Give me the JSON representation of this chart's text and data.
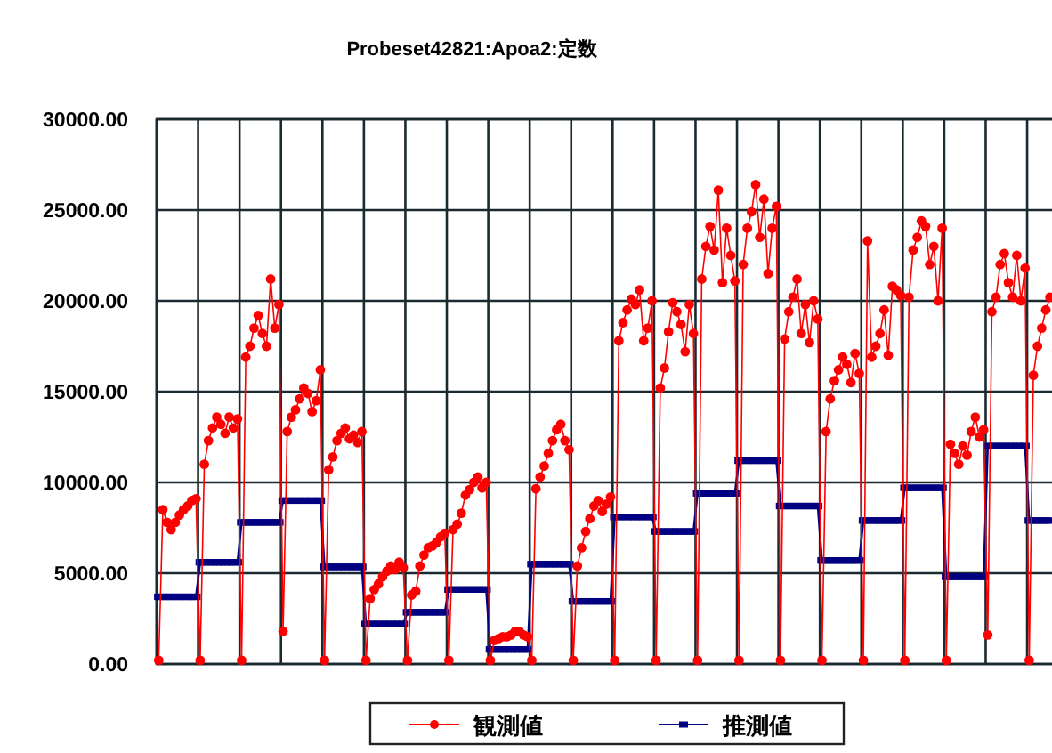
{
  "chart_data": {
    "type": "line",
    "title": "Probeset42821:Apoa2:定数",
    "categories": [
      null,
      null,
      null,
      null,
      null,
      null,
      null,
      null,
      null,
      null,
      null,
      null,
      null,
      null,
      null,
      null,
      null,
      null,
      null,
      null,
      null,
      null,
      null,
      null,
      null,
      null,
      null,
      null,
      null,
      null,
      null,
      null,
      null,
      null,
      null,
      null,
      null,
      null,
      null,
      null,
      null,
      null,
      null,
      null,
      null,
      null,
      null,
      null,
      null,
      null,
      null,
      null,
      null,
      null,
      null,
      null,
      null,
      null,
      null,
      null,
      null,
      null,
      null,
      null,
      null,
      null,
      null,
      null,
      null,
      null,
      null,
      null,
      null,
      null,
      null,
      null,
      null,
      null,
      null,
      null,
      null,
      null,
      null,
      null,
      null,
      null,
      null,
      null,
      null,
      null,
      null,
      null,
      null,
      null,
      null,
      null,
      null,
      null,
      null,
      null,
      null,
      null,
      null,
      null,
      null,
      null,
      null,
      null,
      null,
      null,
      null,
      null,
      null,
      null,
      null,
      null,
      null,
      null,
      null,
      null,
      null,
      null,
      null,
      null,
      null,
      null,
      null,
      null,
      null,
      null,
      null,
      null,
      null,
      null,
      null,
      null,
      null,
      null,
      null,
      null,
      null,
      null,
      null,
      null,
      null,
      null,
      null,
      null,
      null,
      null,
      null,
      null,
      null,
      null,
      null,
      null,
      null,
      null,
      null,
      null,
      null,
      null,
      null,
      null,
      null,
      null,
      null,
      null,
      null,
      null,
      null,
      null,
      null,
      null,
      null,
      null,
      null,
      null,
      null,
      null,
      null,
      null,
      null,
      null,
      null,
      null,
      null,
      null,
      null,
      null,
      null,
      null,
      null,
      null,
      null,
      null,
      null,
      null,
      null,
      null,
      null,
      null,
      null,
      null,
      null,
      null,
      null,
      null,
      null,
      null,
      null,
      null,
      null,
      null,
      null,
      null
    ],
    "series": [
      {
        "name": "観測値",
        "color": "#ff0000",
        "marker": "circle",
        "values": [
          200,
          8500,
          7800,
          7400,
          7800,
          8200,
          8500,
          8700,
          9000,
          9100,
          200,
          11000,
          12300,
          13000,
          13600,
          13200,
          12700,
          13600,
          13000,
          13500,
          200,
          16900,
          17500,
          18500,
          19200,
          18200,
          17500,
          21200,
          18500,
          19800,
          1800,
          12800,
          13600,
          14000,
          14600,
          15200,
          14900,
          13900,
          14500,
          16200,
          200,
          10700,
          11400,
          12300,
          12700,
          13000,
          12400,
          12600,
          12200,
          12800,
          200,
          3600,
          4100,
          4400,
          4800,
          5100,
          5400,
          5200,
          5600,
          5300,
          200,
          3800,
          4000,
          5400,
          6000,
          6400,
          6500,
          6700,
          7000,
          7200,
          200,
          7400,
          7700,
          8300,
          9300,
          9600,
          10000,
          10300,
          9700,
          10000,
          200,
          1300,
          1400,
          1500,
          1500,
          1600,
          1800,
          1800,
          1600,
          1500,
          200,
          9650,
          10300,
          10900,
          11600,
          12300,
          12900,
          13200,
          12300,
          11800,
          200,
          5400,
          6400,
          7300,
          8000,
          8700,
          9000,
          8400,
          8800,
          9200,
          200,
          17800,
          18800,
          19500,
          20100,
          19800,
          20600,
          17800,
          18500,
          20000,
          200,
          15200,
          16300,
          18300,
          19900,
          19400,
          18700,
          17200,
          19800,
          18200,
          200,
          21200,
          23000,
          24100,
          22800,
          26100,
          21000,
          24000,
          22500,
          21100,
          200,
          22000,
          24000,
          24900,
          26400,
          23500,
          25600,
          21500,
          24000,
          25200,
          200,
          17900,
          19400,
          20200,
          21200,
          18200,
          19800,
          17700,
          20000,
          19000,
          200,
          12800,
          14600,
          15600,
          16200,
          16900,
          16500,
          15500,
          17100,
          16000,
          200,
          23300,
          16900,
          17500,
          18200,
          19500,
          17000,
          20800,
          20600,
          20300,
          200,
          20200,
          22800,
          23500,
          24400,
          24100,
          22000,
          23000,
          20000,
          24000,
          200,
          12100,
          11600,
          11000,
          12000,
          11500,
          12800,
          13600,
          12500,
          12900,
          1600,
          19400,
          20200,
          22000,
          22600,
          21000,
          20200,
          22500,
          20000,
          21800,
          200,
          15900,
          17500,
          18500,
          19500,
          20200
        ]
      },
      {
        "name": "推測値",
        "color": "#000080",
        "marker": "square",
        "values": [
          3700,
          3700,
          3700,
          3700,
          3700,
          3700,
          3700,
          3700,
          3700,
          3700,
          5600,
          5600,
          5600,
          5600,
          5600,
          5600,
          5600,
          5600,
          5600,
          5600,
          7800,
          7800,
          7800,
          7800,
          7800,
          7800,
          7800,
          7800,
          7800,
          7800,
          9000,
          9000,
          9000,
          9000,
          9000,
          9000,
          9000,
          9000,
          9000,
          9000,
          5350,
          5350,
          5350,
          5350,
          5350,
          5350,
          5350,
          5350,
          5350,
          5350,
          2200,
          2200,
          2200,
          2200,
          2200,
          2200,
          2200,
          2200,
          2200,
          2200,
          2850,
          2850,
          2850,
          2850,
          2850,
          2850,
          2850,
          2850,
          2850,
          2850,
          4100,
          4100,
          4100,
          4100,
          4100,
          4100,
          4100,
          4100,
          4100,
          4100,
          800,
          800,
          800,
          800,
          800,
          800,
          800,
          800,
          800,
          800,
          5500,
          5500,
          5500,
          5500,
          5500,
          5500,
          5500,
          5500,
          5500,
          5500,
          3450,
          3450,
          3450,
          3450,
          3450,
          3450,
          3450,
          3450,
          3450,
          3450,
          8100,
          8100,
          8100,
          8100,
          8100,
          8100,
          8100,
          8100,
          8100,
          8100,
          7300,
          7300,
          7300,
          7300,
          7300,
          7300,
          7300,
          7300,
          7300,
          7300,
          9400,
          9400,
          9400,
          9400,
          9400,
          9400,
          9400,
          9400,
          9400,
          9400,
          11200,
          11200,
          11200,
          11200,
          11200,
          11200,
          11200,
          11200,
          11200,
          11200,
          8700,
          8700,
          8700,
          8700,
          8700,
          8700,
          8700,
          8700,
          8700,
          8700,
          5700,
          5700,
          5700,
          5700,
          5700,
          5700,
          5700,
          5700,
          5700,
          5700,
          7900,
          7900,
          7900,
          7900,
          7900,
          7900,
          7900,
          7900,
          7900,
          7900,
          9700,
          9700,
          9700,
          9700,
          9700,
          9700,
          9700,
          9700,
          9700,
          9700,
          4800,
          4800,
          4800,
          4800,
          4800,
          4800,
          4800,
          4800,
          4800,
          4800,
          12000,
          12000,
          12000,
          12000,
          12000,
          12000,
          12000,
          12000,
          12000,
          12000,
          7900,
          7900,
          7900,
          7900,
          7900,
          7900
        ]
      }
    ],
    "ylim": [
      0,
      30000
    ],
    "yticks": [
      {
        "value": 0,
        "label": "0.00"
      },
      {
        "value": 5000,
        "label": "5000.00"
      },
      {
        "value": 10000,
        "label": "10000.00"
      },
      {
        "value": 15000,
        "label": "15000.00"
      },
      {
        "value": 20000,
        "label": "20000.00"
      },
      {
        "value": 25000,
        "label": "25000.00"
      },
      {
        "value": 30000,
        "label": "30000.00"
      }
    ],
    "grid": true,
    "legend": "bottom"
  }
}
